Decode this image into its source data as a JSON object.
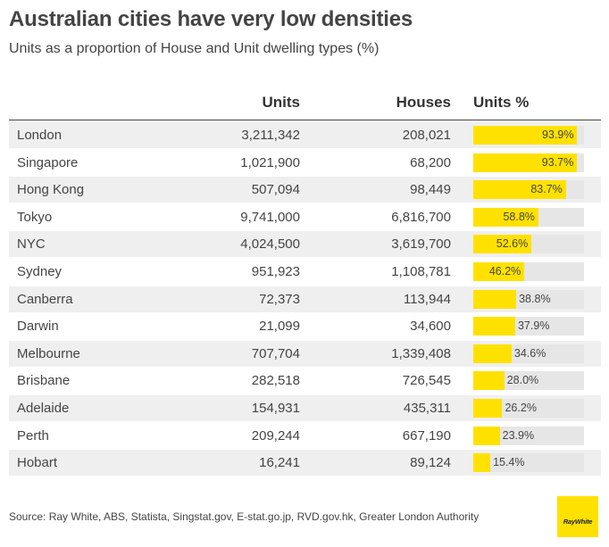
{
  "title": "Australian cities have very low densities",
  "subtitle": "Units as a proportion of House and Unit dwelling types (%)",
  "source": "Source: Ray White, ABS, Statista, Singstat.gov, E-stat.go.jp, RVD.gov.hk, Greater London Authority",
  "logo_text": "RayWhite",
  "colors": {
    "bar": "#ffe100",
    "track": "#e6e6e6",
    "shade": "#efefef"
  },
  "chart_data": {
    "type": "table",
    "columns": [
      "Units",
      "Houses",
      "Units %"
    ],
    "rows": [
      {
        "city": "London",
        "units": "3,211,342",
        "houses": "208,021",
        "pct": 93.9,
        "pct_label": "93.9%"
      },
      {
        "city": "Singapore",
        "units": "1,021,900",
        "houses": "68,200",
        "pct": 93.7,
        "pct_label": "93.7%"
      },
      {
        "city": "Hong Kong",
        "units": "507,094",
        "houses": "98,449",
        "pct": 83.7,
        "pct_label": "83.7%"
      },
      {
        "city": "Tokyo",
        "units": "9,741,000",
        "houses": "6,816,700",
        "pct": 58.8,
        "pct_label": "58.8%"
      },
      {
        "city": "NYC",
        "units": "4,024,500",
        "houses": "3,619,700",
        "pct": 52.6,
        "pct_label": "52.6%"
      },
      {
        "city": "Sydney",
        "units": "951,923",
        "houses": "1,108,781",
        "pct": 46.2,
        "pct_label": "46.2%"
      },
      {
        "city": "Canberra",
        "units": "72,373",
        "houses": "113,944",
        "pct": 38.8,
        "pct_label": "38.8%"
      },
      {
        "city": "Darwin",
        "units": "21,099",
        "houses": "34,600",
        "pct": 37.9,
        "pct_label": "37.9%"
      },
      {
        "city": "Melbourne",
        "units": "707,704",
        "houses": "1,339,408",
        "pct": 34.6,
        "pct_label": "34.6%"
      },
      {
        "city": "Brisbane",
        "units": "282,518",
        "houses": "726,545",
        "pct": 28.0,
        "pct_label": "28.0%"
      },
      {
        "city": "Adelaide",
        "units": "154,931",
        "houses": "435,311",
        "pct": 26.2,
        "pct_label": "26.2%"
      },
      {
        "city": "Perth",
        "units": "209,244",
        "houses": "667,190",
        "pct": 23.9,
        "pct_label": "23.9%"
      },
      {
        "city": "Hobart",
        "units": "16,241",
        "houses": "89,124",
        "pct": 15.4,
        "pct_label": "15.4%"
      }
    ]
  }
}
